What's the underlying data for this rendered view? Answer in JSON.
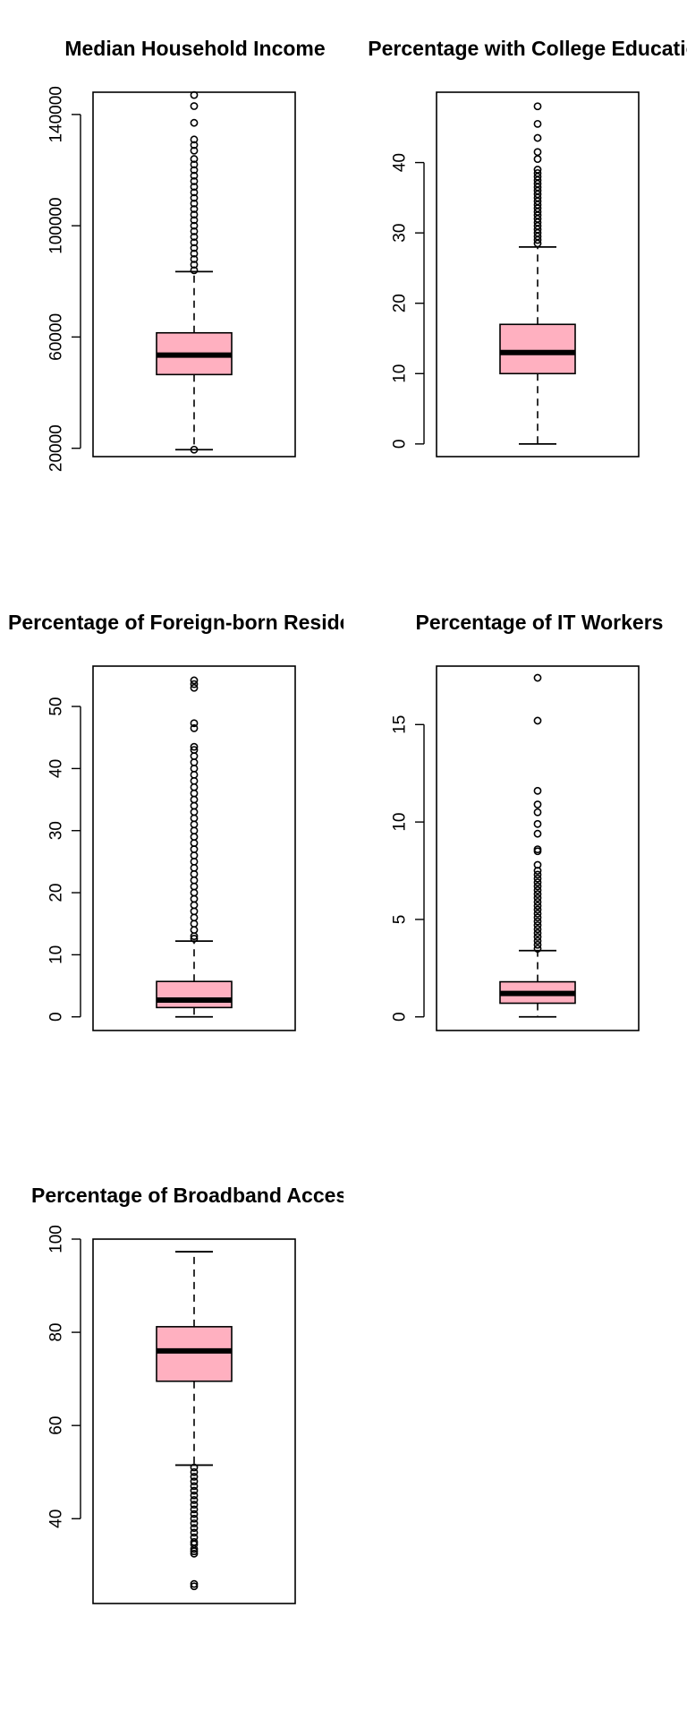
{
  "chart_data": [
    {
      "type": "box",
      "title": "Median Household Income",
      "yticks": [
        20000,
        60000,
        100000,
        140000
      ],
      "ylim": [
        17000,
        148000
      ],
      "box": {
        "whisker_low": 19500,
        "q1": 46500,
        "median": 53500,
        "q3": 61500,
        "whisker_high": 83500
      },
      "outliers_low": [
        19500
      ],
      "outliers_high": [
        84000,
        86000,
        88000,
        90000,
        92000,
        94000,
        96000,
        98000,
        100000,
        102000,
        104000,
        106000,
        108000,
        110000,
        112000,
        114000,
        116000,
        118000,
        120000,
        122000,
        124000,
        127000,
        129000,
        131000,
        137000,
        143000,
        147000
      ],
      "fill": "#ffb0c0"
    },
    {
      "type": "box",
      "title": "Percentage with College Education",
      "yticks": [
        0,
        10,
        20,
        30,
        40
      ],
      "ylim": [
        -1.8,
        50
      ],
      "box": {
        "whisker_low": 0,
        "q1": 10,
        "median": 13,
        "q3": 17,
        "whisker_high": 28
      },
      "outliers_low": [],
      "outliers_high": [
        28.5,
        29,
        29.5,
        30,
        30.5,
        31,
        31.5,
        32,
        32.5,
        33,
        33.5,
        34,
        34.5,
        35,
        35.5,
        36,
        36.5,
        37,
        37.5,
        38,
        38.5,
        39,
        40.5,
        41.5,
        43.5,
        45.5,
        48
      ],
      "fill": "#ffb0c0"
    },
    {
      "type": "box",
      "title": "Percentage of Foreign-born Residents",
      "yticks": [
        0,
        10,
        20,
        30,
        40,
        50
      ],
      "ylim": [
        -2.2,
        56.5
      ],
      "box": {
        "whisker_low": 0,
        "q1": 1.5,
        "median": 2.7,
        "q3": 5.7,
        "whisker_high": 12.2
      },
      "outliers_low": [],
      "outliers_high": [
        12.6,
        13,
        14,
        15,
        16,
        17,
        18,
        19,
        20,
        21,
        22,
        23,
        24,
        25,
        26,
        27,
        28,
        29,
        30,
        31,
        32,
        33,
        34,
        35,
        36,
        37,
        38,
        39,
        40,
        41,
        42,
        43,
        43.5,
        46.5,
        47.3,
        53,
        53.6,
        54.2
      ],
      "fill": "#ffb0c0"
    },
    {
      "type": "box",
      "title": "Percentage of IT Workers",
      "yticks": [
        0,
        5,
        10,
        15
      ],
      "ylim": [
        -0.7,
        18
      ],
      "box": {
        "whisker_low": 0,
        "q1": 0.7,
        "median": 1.2,
        "q3": 1.8,
        "whisker_high": 3.4
      },
      "outliers_low": [],
      "outliers_high": [
        3.5,
        3.7,
        3.9,
        4.1,
        4.3,
        4.5,
        4.7,
        4.9,
        5.1,
        5.3,
        5.5,
        5.7,
        5.9,
        6.1,
        6.3,
        6.5,
        6.7,
        6.9,
        7.1,
        7.3,
        7.5,
        7.8,
        8.5,
        8.6,
        9.4,
        9.9,
        10.5,
        10.9,
        11.6,
        15.2,
        17.4
      ],
      "fill": "#ffb0c0"
    },
    {
      "type": "box",
      "title": "Percentage of Broadband Access",
      "yticks": [
        40,
        60,
        80,
        100
      ],
      "ylim": [
        21.8,
        100
      ],
      "box": {
        "whisker_low": 51.5,
        "q1": 69.5,
        "median": 76,
        "q3": 81.2,
        "whisker_high": 97.3
      },
      "outliers_low": [
        51,
        50,
        49,
        48,
        47,
        46,
        45,
        44,
        43,
        42,
        41,
        40,
        39,
        38,
        37,
        36,
        35,
        34.5,
        33.5,
        33,
        32.5,
        26,
        25.5
      ],
      "outliers_high": [],
      "fill": "#ffb0c0"
    }
  ]
}
